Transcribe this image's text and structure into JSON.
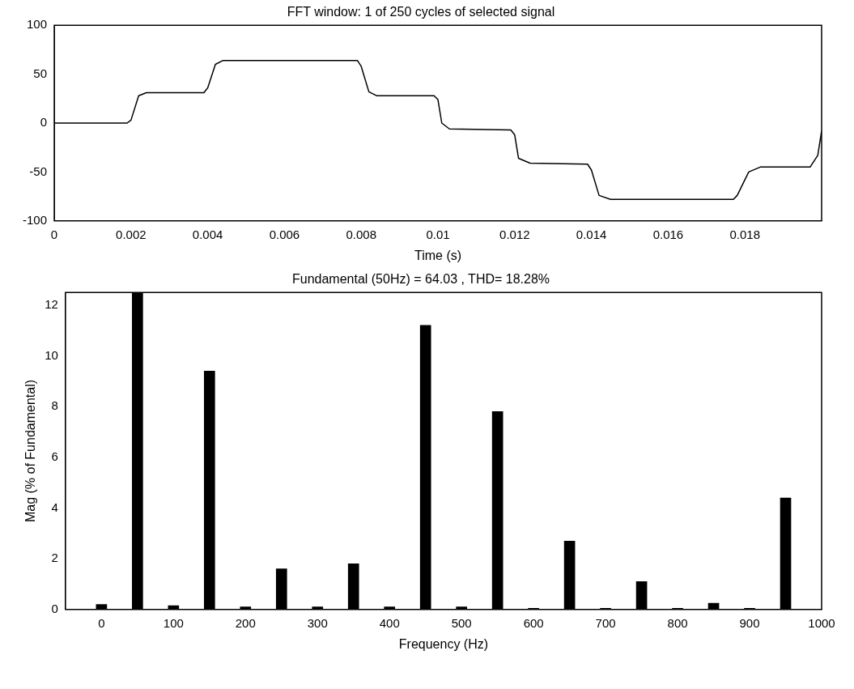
{
  "chart_data": [
    {
      "type": "line",
      "title": "FFT window: 1 of 250 cycles of selected signal",
      "xlabel": "Time (s)",
      "color": "#000000",
      "x": [
        0,
        0.0019,
        0.002,
        0.0022,
        0.0024,
        0.0039,
        0.004,
        0.0042,
        0.0044,
        0.0079,
        0.008,
        0.0082,
        0.0084,
        0.0099,
        0.01,
        0.0101,
        0.0103,
        0.0119,
        0.012,
        0.0121,
        0.0124,
        0.0139,
        0.014,
        0.0142,
        0.0145,
        0.0177,
        0.0178,
        0.0181,
        0.0184,
        0.0197,
        0.0199,
        0.02
      ],
      "values": [
        0,
        0,
        3,
        28,
        31,
        31,
        36,
        60,
        64,
        64,
        58,
        32,
        28,
        28,
        24,
        0,
        -6,
        -7,
        -12,
        -36,
        -41,
        -42,
        -48,
        -74,
        -78,
        -78,
        -74,
        -50,
        -45,
        -45,
        -33,
        -8
      ],
      "xlim": [
        0,
        0.02
      ],
      "ylim": [
        -100,
        100
      ],
      "xticks": [
        0,
        0.002,
        0.004,
        0.006,
        0.008,
        0.01,
        0.012,
        0.014,
        0.016,
        0.018
      ],
      "yticks": [
        -100,
        -50,
        0,
        50,
        100
      ]
    },
    {
      "type": "bar",
      "title": "Fundamental (50Hz) = 64.03 , THD= 18.28%",
      "xlabel": "Frequency (Hz)",
      "ylabel": "Mag (% of Fundamental)",
      "color": "#000000",
      "x": [
        0,
        50,
        100,
        150,
        200,
        250,
        300,
        350,
        400,
        450,
        500,
        550,
        600,
        650,
        700,
        750,
        800,
        850,
        900,
        950
      ],
      "values": [
        0.2,
        12.5,
        0.15,
        9.4,
        0.1,
        1.6,
        0.1,
        1.8,
        0.1,
        11.2,
        0.1,
        7.8,
        0.05,
        2.7,
        0.05,
        1.1,
        0.05,
        0.25,
        0.05,
        4.4
      ],
      "xlim": [
        -50,
        1000
      ],
      "ylim": [
        0,
        12.5
      ],
      "xticks": [
        0,
        100,
        200,
        300,
        400,
        500,
        600,
        700,
        800,
        900,
        1000
      ],
      "yticks": [
        0,
        2,
        4,
        6,
        8,
        10,
        12
      ]
    }
  ]
}
